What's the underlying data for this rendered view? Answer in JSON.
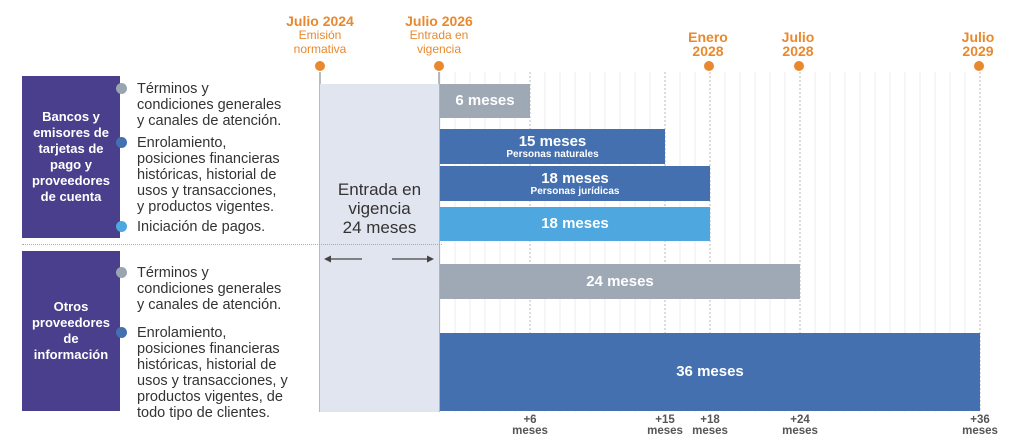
{
  "timeline_top": [
    {
      "title": "Julio 2024",
      "subtitle": "Emisión\nnormativa"
    },
    {
      "title": "Julio 2026",
      "subtitle": "Entrada en\nvigencia"
    },
    {
      "title": "Enero\n2028",
      "subtitle": ""
    },
    {
      "title": "Julio\n2028",
      "subtitle": ""
    },
    {
      "title": "Julio\n2029",
      "subtitle": ""
    }
  ],
  "groups": [
    {
      "label": "Bancos y emisores de tarjetas de pago y proveedores de cuenta",
      "items": [
        {
          "text": "Términos y\ncondiciones generales\ny canales de atención.",
          "dot_color": "#9aa5b1"
        },
        {
          "text": "Enrolamiento,\nposiciones financieras\nhistóricas, historial de\nusos y transacciones,\ny productos vigentes.",
          "dot_color": "#4470b0"
        },
        {
          "text": "Iniciación de pagos.",
          "dot_color": "#4ea7de"
        }
      ]
    },
    {
      "label": "Otros proveedores de información",
      "items": [
        {
          "text": "Términos y\ncondiciones generales\ny canales de atención.",
          "dot_color": "#9aa5b1"
        },
        {
          "text": "Enrolamiento,\nposiciones financieras\nhistóricas, historial de\nusos y transacciones, y\nproductos vigentes, de\ntodo tipo de clientes.",
          "dot_color": "#4470b0"
        }
      ]
    }
  ],
  "entrada": {
    "text": "Entrada en\nvigencia\n24 meses"
  },
  "chart_data": {
    "type": "bar",
    "orientation": "horizontal",
    "x_unit": "meses",
    "xlim": [
      0,
      36
    ],
    "grid": true,
    "bars": [
      {
        "months": 6,
        "label": "6 meses",
        "sublabel": "",
        "color": "#9ea9b5"
      },
      {
        "months": 15,
        "label": "15 meses",
        "sublabel": "Personas naturales",
        "color": "#4470b0"
      },
      {
        "months": 18,
        "label": "18 meses",
        "sublabel": "Personas jurídicas",
        "color": "#4470b0"
      },
      {
        "months": 18,
        "label": "18 meses",
        "sublabel": "",
        "color": "#4ea7de"
      },
      {
        "months": 24,
        "label": "24 meses",
        "sublabel": "",
        "color": "#9ea9b5"
      },
      {
        "months": 36,
        "label": "36 meses",
        "sublabel": "",
        "color": "#4470b0"
      }
    ],
    "ticks": [
      {
        "months": 6,
        "label": "+6\nmeses"
      },
      {
        "months": 15,
        "label": "+15\nmeses"
      },
      {
        "months": 18,
        "label": "+18\nmeses"
      },
      {
        "months": 24,
        "label": "+24\nmeses"
      },
      {
        "months": 36,
        "label": "+36\nmeses"
      }
    ]
  }
}
